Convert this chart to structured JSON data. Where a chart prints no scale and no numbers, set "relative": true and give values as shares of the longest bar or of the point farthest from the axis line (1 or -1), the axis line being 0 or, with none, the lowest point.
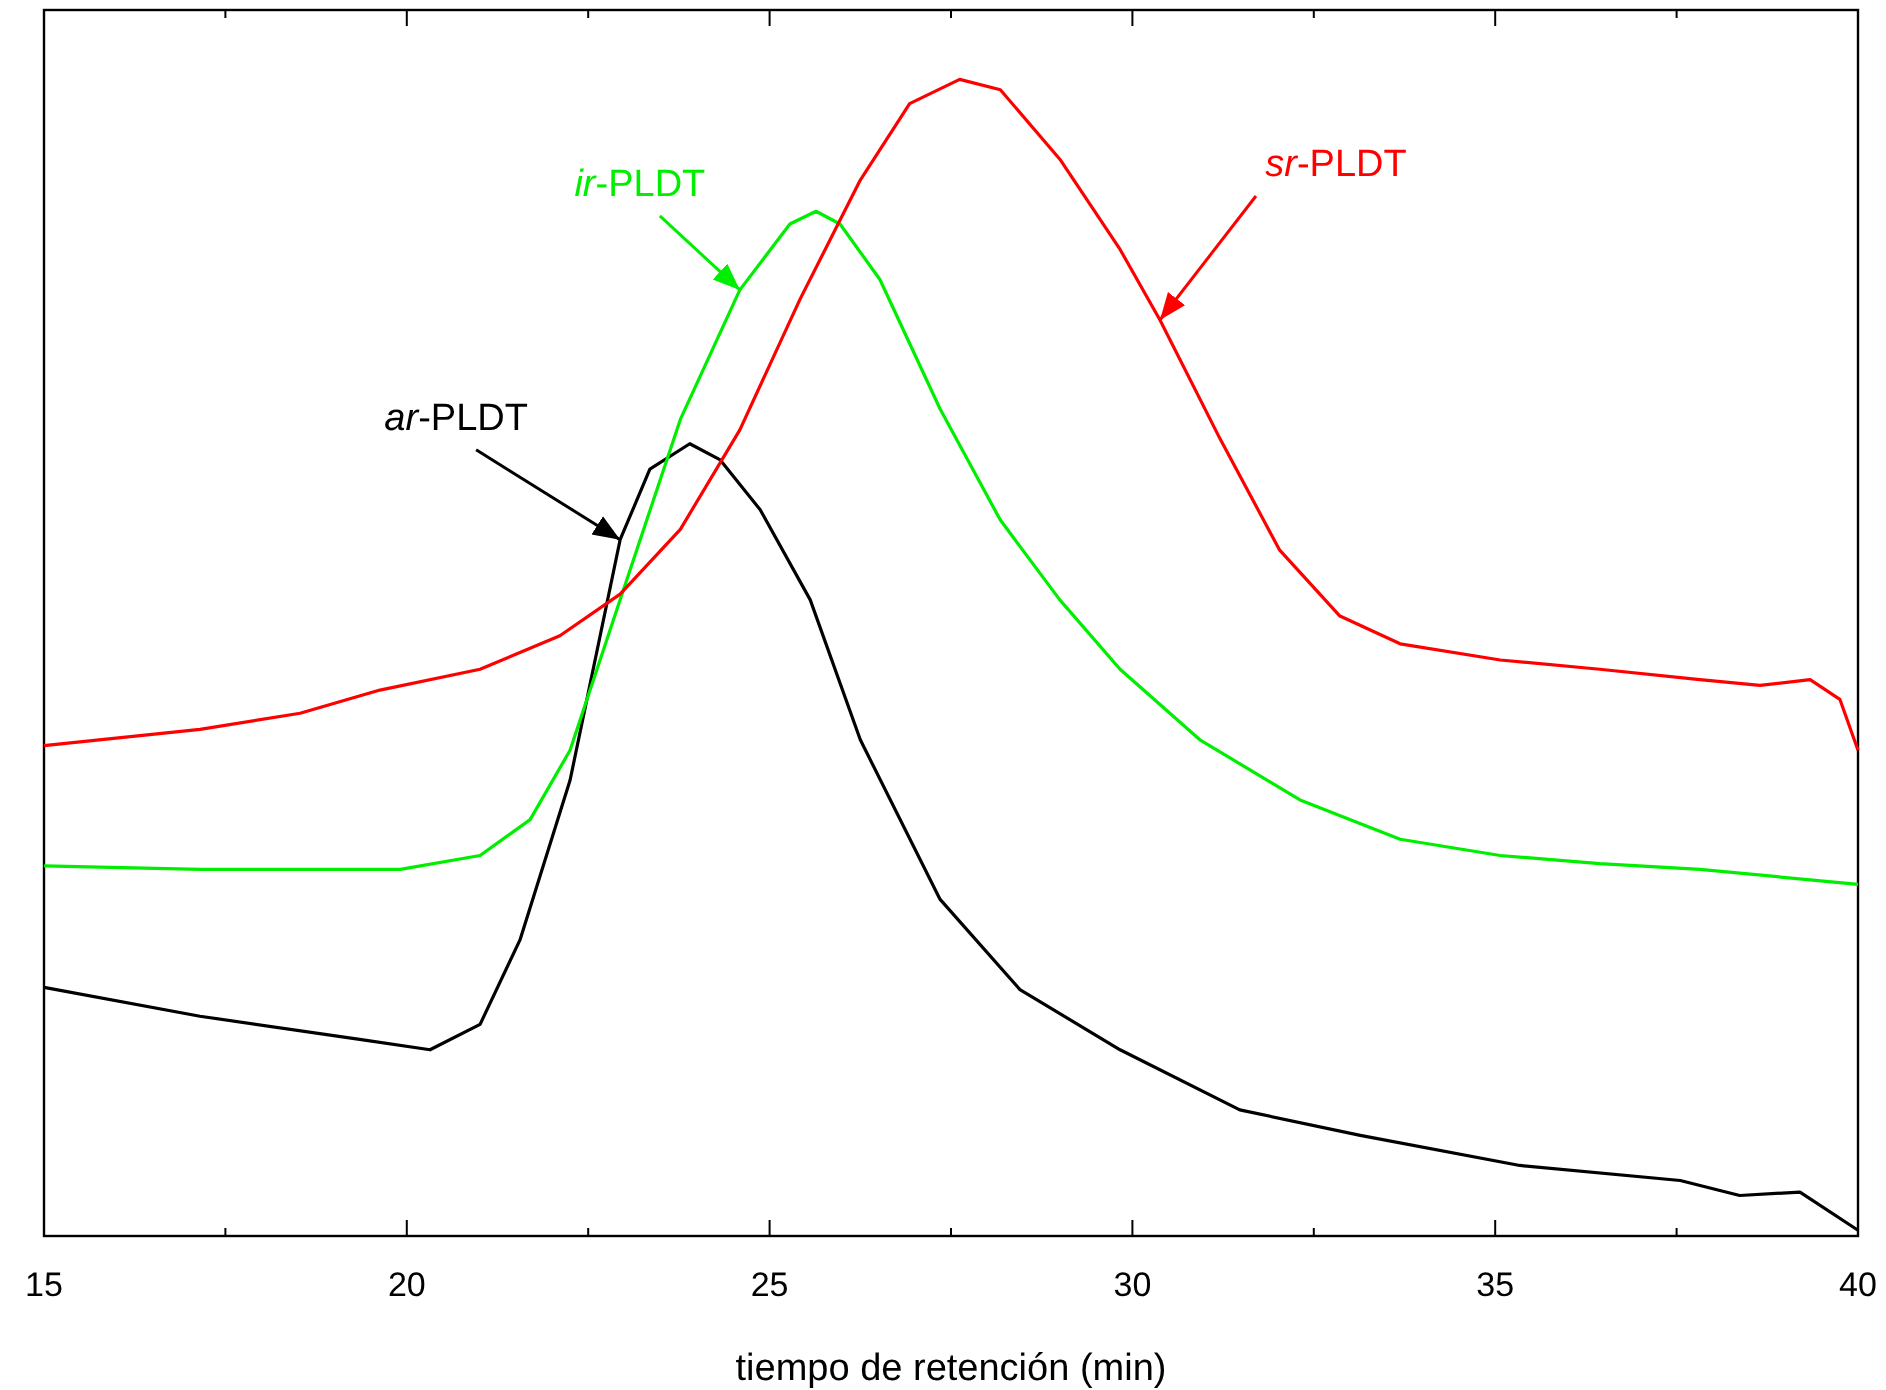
{
  "chart_data": {
    "type": "line",
    "relative": true,
    "xlabel": "tiempo de retención (min)",
    "xlim": [
      15,
      40
    ],
    "xticks": [
      15,
      20,
      25,
      30,
      35,
      40
    ],
    "grid": false,
    "line_style": "solid",
    "series": [
      {
        "color": "#000000",
        "x": [
          15,
          17.15,
          19.35,
          20.32,
          21.01,
          21.56,
          22.25,
          22.94,
          23.35,
          23.9,
          24.32,
          24.87,
          25.56,
          26.25,
          27.35,
          28.45,
          29.83,
          31.48,
          33.14,
          35.34,
          37.55,
          38.37,
          39.2,
          40
        ],
        "values": [
          0.215,
          0.19,
          0.17,
          0.161,
          0.183,
          0.256,
          0.394,
          0.602,
          0.663,
          0.685,
          0.671,
          0.628,
          0.55,
          0.429,
          0.291,
          0.213,
          0.161,
          0.109,
          0.087,
          0.061,
          0.048,
          0.035,
          0.038,
          0.005
        ]
      },
      {
        "color": "#00ee00",
        "x": [
          15,
          17.15,
          19.91,
          21.01,
          21.7,
          22.25,
          22.94,
          23.77,
          24.59,
          25.28,
          25.64,
          25.97,
          26.52,
          27.35,
          28.18,
          29,
          29.83,
          30.93,
          32.31,
          33.69,
          35.07,
          36.44,
          37.82,
          40
        ],
        "values": [
          0.32,
          0.317,
          0.317,
          0.329,
          0.36,
          0.42,
          0.55,
          0.706,
          0.818,
          0.875,
          0.886,
          0.875,
          0.827,
          0.715,
          0.619,
          0.55,
          0.49,
          0.429,
          0.377,
          0.343,
          0.329,
          0.322,
          0.317,
          0.304
        ]
      },
      {
        "color": "#ff0000",
        "x": [
          15,
          17.15,
          18.53,
          19.63,
          21.01,
          22.11,
          22.94,
          23.77,
          24.59,
          25.42,
          26.25,
          26.93,
          27.62,
          28.18,
          29,
          29.83,
          30.38,
          31.21,
          32.03,
          32.86,
          33.69,
          35.07,
          36.44,
          37.82,
          38.65,
          39.34,
          39.75,
          40
        ],
        "values": [
          0.424,
          0.438,
          0.452,
          0.472,
          0.49,
          0.519,
          0.555,
          0.611,
          0.697,
          0.81,
          0.913,
          0.979,
          1,
          0.991,
          0.931,
          0.853,
          0.792,
          0.689,
          0.593,
          0.536,
          0.512,
          0.498,
          0.49,
          0.481,
          0.476,
          0.481,
          0.464,
          0.42
        ]
      }
    ],
    "annotations": [
      {
        "text": "ar-PLDT",
        "x": 22.94,
        "y": 0.602
      },
      {
        "text": "ir-PLDT",
        "x": 24.59,
        "y": 0.818
      },
      {
        "text": "sr-PLDT",
        "x": 30.38,
        "y": 0.792
      }
    ]
  }
}
